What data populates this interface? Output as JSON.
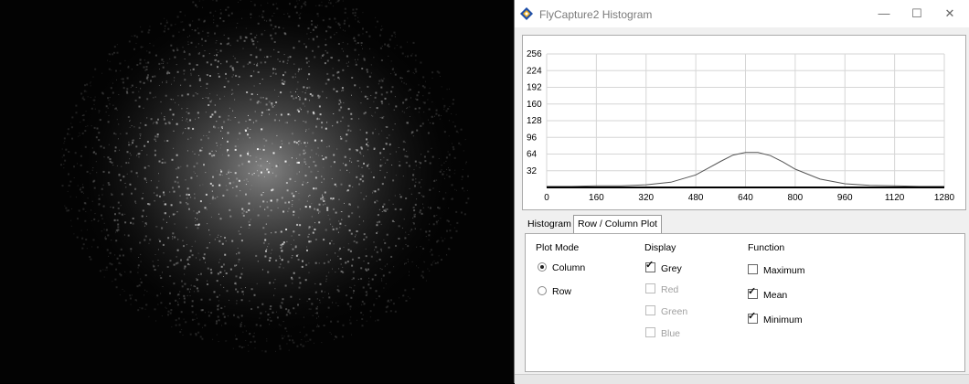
{
  "window": {
    "title": "FlyCapture2 Histogram",
    "minimize_icon": "minimize-icon",
    "maximize_icon": "maximize-icon",
    "close_icon": "close-icon"
  },
  "tabs": [
    {
      "label": "Histogram",
      "active": false
    },
    {
      "label": "Row / Column Plot",
      "active": true
    }
  ],
  "plot_mode": {
    "title": "Plot Mode",
    "options": [
      {
        "label": "Column",
        "selected": true
      },
      {
        "label": "Row",
        "selected": false
      }
    ]
  },
  "display": {
    "title": "Display",
    "options": [
      {
        "label": "Grey",
        "checked": true,
        "enabled": true
      },
      {
        "label": "Red",
        "checked": false,
        "enabled": false
      },
      {
        "label": "Green",
        "checked": false,
        "enabled": false
      },
      {
        "label": "Blue",
        "checked": false,
        "enabled": false
      }
    ]
  },
  "function": {
    "title": "Function",
    "options": [
      {
        "label": "Maximum",
        "checked": false
      },
      {
        "label": "Mean",
        "checked": true
      },
      {
        "label": "Minimum",
        "checked": true
      }
    ]
  },
  "chart_data": {
    "type": "line",
    "title": "",
    "xlabel": "",
    "ylabel": "",
    "xlim": [
      0,
      1280
    ],
    "ylim": [
      0,
      256
    ],
    "x_ticks": [
      "0",
      "160",
      "320",
      "480",
      "640",
      "800",
      "960",
      "1120",
      "1280"
    ],
    "y_ticks": [
      "32",
      "64",
      "96",
      "128",
      "160",
      "192",
      "224",
      "256"
    ],
    "grid": true,
    "series": [
      {
        "color": "#555555",
        "x": [
          0,
          80,
          160,
          240,
          320,
          400,
          480,
          520,
          560,
          600,
          640,
          680,
          720,
          760,
          800,
          880,
          960,
          1040,
          1120,
          1200,
          1280
        ],
        "y": [
          2,
          2,
          3,
          3,
          5,
          10,
          24,
          37,
          50,
          62,
          67,
          67,
          61,
          49,
          35,
          16,
          7,
          4,
          3,
          2,
          2
        ]
      },
      {
        "color": "#000000",
        "x": [
          0,
          1280
        ],
        "y": [
          0,
          0
        ]
      }
    ]
  }
}
